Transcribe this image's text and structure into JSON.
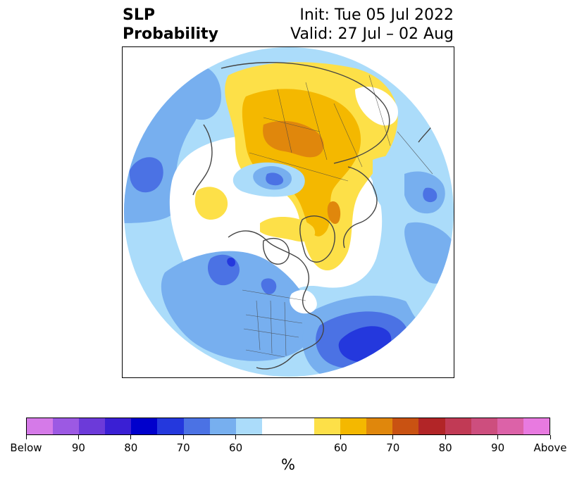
{
  "title": {
    "left_line1": "SLP",
    "left_line2": "Probability",
    "right_line1": "Init: Tue 05 Jul 2022",
    "right_line2": "Valid: 27 Jul – 02 Aug"
  },
  "colorbar": {
    "unit": "%",
    "tick_labels": [
      "Below",
      "90",
      "80",
      "70",
      "60",
      "60",
      "70",
      "80",
      "90",
      "Above"
    ],
    "below_colors": [
      "#d57ae8",
      "#9c59e3",
      "#6c3ad9",
      "#3a1fd4",
      "#0000cc",
      "#2438dd",
      "#4b72e4",
      "#77afef",
      "#abdcfa"
    ],
    "neutral_color": "#ffffff",
    "above_colors": [
      "#fde048",
      "#f4b800",
      "#e0870c",
      "#c95212",
      "#b22527",
      "#c13a55",
      "#cd4e7e",
      "#dc62a8",
      "#e87ae0"
    ]
  },
  "map": {
    "projection": "north-polar-stereographic",
    "palette": {
      "below60": "#abdcfa",
      "below70": "#77afef",
      "below80": "#4b72e4",
      "below90": "#2438dd",
      "above60": "#fde048",
      "above70": "#f4b800",
      "above80": "#e0870c",
      "coast": "#444444"
    }
  }
}
